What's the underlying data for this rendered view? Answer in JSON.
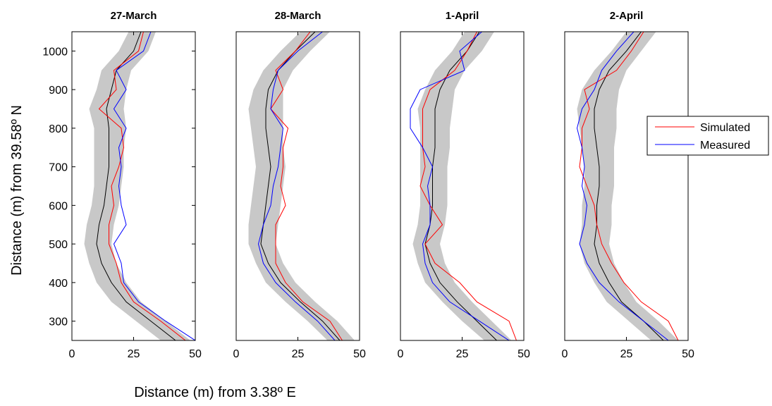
{
  "chart_data": {
    "type": "line",
    "xlabel": "Distance (m) from 3.38º E",
    "ylabel": "Distance (m) from 39.58º N",
    "xlim": [
      0,
      50
    ],
    "ylim": [
      250,
      1050
    ],
    "xticks": [
      "0",
      "25",
      "50"
    ],
    "yticks": [
      "300",
      "400",
      "500",
      "600",
      "700",
      "800",
      "900",
      "1000"
    ],
    "legend": {
      "placement": "right",
      "entries": [
        {
          "name": "Simulated",
          "color": "#ff0000"
        },
        {
          "name": "Measured",
          "color": "#0000ff"
        }
      ]
    },
    "colors": {
      "mean": "#000000",
      "band": "#c8c8c8",
      "simulated": "#ff0000",
      "measured": "#0000ff"
    },
    "panels": [
      {
        "title": "27-March",
        "series": [
          {
            "role": "mean",
            "y": [
              250,
              300,
              350,
              400,
              450,
              500,
              550,
              600,
              650,
              700,
              750,
              800,
              850,
              900,
              950,
              1000,
              1050
            ],
            "x": [
              42,
              32,
              22,
              16,
              12,
              10,
              11,
              13,
              14,
              15,
              15,
              15,
              14,
              16,
              18,
              25,
              28
            ]
          },
          {
            "role": "band-low",
            "y": [
              250,
              300,
              350,
              400,
              450,
              500,
              550,
              600,
              650,
              700,
              750,
              800,
              850,
              900,
              950,
              1000,
              1050
            ],
            "x": [
              36,
              26,
              16,
              10,
              7,
              5,
              6,
              8,
              9,
              9,
              9,
              9,
              7,
              10,
              12,
              19,
              23
            ]
          },
          {
            "role": "band-high",
            "y": [
              250,
              300,
              350,
              400,
              450,
              500,
              550,
              600,
              650,
              700,
              750,
              800,
              850,
              900,
              950,
              1000,
              1050
            ],
            "x": [
              48,
              38,
              28,
              22,
              18,
              16,
              17,
              19,
              20,
              21,
              21,
              22,
              21,
              22,
              24,
              31,
              34
            ]
          },
          {
            "role": "simulated",
            "name": "Simulated",
            "y": [
              250,
              300,
              350,
              400,
              450,
              500,
              550,
              600,
              650,
              700,
              750,
              800,
              850,
              900,
              950,
              1000,
              1050
            ],
            "x": [
              46,
              36,
              25,
              20,
              18,
              15,
              15,
              17,
              16,
              19,
              21,
              20,
              11,
              18,
              17,
              27,
              29
            ]
          },
          {
            "role": "measured",
            "name": "Measured",
            "y": [
              250,
              300,
              350,
              400,
              450,
              500,
              550,
              600,
              650,
              700,
              750,
              800,
              850,
              900,
              950,
              1000,
              1050
            ],
            "x": [
              50,
              38,
              27,
              21,
              20,
              17,
              22,
              20,
              19,
              20,
              19,
              22,
              17,
              22,
              18,
              29,
              32
            ]
          }
        ]
      },
      {
        "title": "28-March",
        "series": [
          {
            "role": "mean",
            "y": [
              250,
              300,
              350,
              400,
              450,
              500,
              550,
              600,
              650,
              700,
              750,
              800,
              850,
              900,
              950,
              1000,
              1050
            ],
            "x": [
              42,
              35,
              26,
              18,
              13,
              10,
              11,
              12,
              13,
              14,
              13,
              12,
              12,
              13,
              17,
              24,
              32
            ]
          },
          {
            "role": "band-low",
            "y": [
              250,
              300,
              350,
              400,
              450,
              500,
              550,
              600,
              650,
              700,
              750,
              800,
              850,
              900,
              950,
              1000,
              1050
            ],
            "x": [
              37,
              29,
              20,
              12,
              8,
              5,
              5,
              6,
              7,
              8,
              7,
              6,
              5,
              7,
              11,
              18,
              26
            ]
          },
          {
            "role": "band-high",
            "y": [
              250,
              300,
              350,
              400,
              450,
              500,
              550,
              600,
              650,
              700,
              750,
              800,
              850,
              900,
              950,
              1000,
              1050
            ],
            "x": [
              48,
              41,
              32,
              24,
              19,
              16,
              17,
              18,
              19,
              20,
              19,
              19,
              19,
              19,
              23,
              30,
              38
            ]
          },
          {
            "role": "simulated",
            "name": "Simulated",
            "y": [
              250,
              300,
              350,
              400,
              450,
              500,
              550,
              600,
              650,
              700,
              750,
              800,
              850,
              900,
              950,
              1000,
              1050
            ],
            "x": [
              43,
              38,
              27,
              20,
              16,
              16,
              16,
              20,
              18,
              19,
              19,
              21,
              14,
              19,
              16,
              24,
              30
            ]
          },
          {
            "role": "measured",
            "name": "Measured",
            "y": [
              250,
              300,
              350,
              400,
              450,
              500,
              550,
              600,
              650,
              700,
              750,
              800,
              850,
              900,
              950,
              1000,
              1050
            ],
            "x": [
              40,
              33,
              24,
              16,
              11,
              9,
              11,
              14,
              15,
              17,
              18,
              19,
              14,
              15,
              17,
              25,
              35
            ]
          }
        ]
      },
      {
        "title": "1-April",
        "series": [
          {
            "role": "mean",
            "y": [
              250,
              300,
              350,
              400,
              450,
              500,
              550,
              600,
              650,
              700,
              750,
              800,
              850,
              900,
              950,
              1000,
              1050
            ],
            "x": [
              39,
              31,
              23,
              16,
              12,
              10,
              12,
              13,
              13,
              13,
              14,
              14,
              14,
              16,
              20,
              27,
              32
            ]
          },
          {
            "role": "band-low",
            "y": [
              250,
              300,
              350,
              400,
              450,
              500,
              550,
              600,
              650,
              700,
              750,
              800,
              850,
              900,
              950,
              1000,
              1050
            ],
            "x": [
              34,
              25,
              17,
              10,
              7,
              5,
              7,
              8,
              8,
              8,
              8,
              8,
              7,
              10,
              14,
              21,
              26
            ]
          },
          {
            "role": "band-high",
            "y": [
              250,
              300,
              350,
              400,
              450,
              500,
              550,
              600,
              650,
              700,
              750,
              800,
              850,
              900,
              950,
              1000,
              1050
            ],
            "x": [
              45,
              37,
              29,
              22,
              18,
              16,
              18,
              19,
              19,
              19,
              20,
              20,
              21,
              22,
              26,
              33,
              38
            ]
          },
          {
            "role": "simulated",
            "name": "Simulated",
            "y": [
              250,
              300,
              350,
              400,
              450,
              500,
              550,
              600,
              650,
              700,
              750,
              800,
              850,
              900,
              950,
              1000,
              1050
            ],
            "x": [
              47,
              44,
              31,
              24,
              14,
              10,
              17,
              12,
              8,
              10,
              9,
              9,
              9,
              12,
              22,
              27,
              31
            ]
          },
          {
            "role": "measured",
            "name": "Measured",
            "y": [
              250,
              300,
              350,
              400,
              450,
              500,
              550,
              600,
              650,
              700,
              750,
              800,
              850,
              900,
              950,
              1000,
              1050
            ],
            "x": [
              44,
              32,
              20,
              13,
              10,
              9,
              12,
              12,
              11,
              13,
              9,
              4,
              4,
              8,
              26,
              24,
              33
            ]
          }
        ]
      },
      {
        "title": "2-April",
        "series": [
          {
            "role": "mean",
            "y": [
              250,
              300,
              350,
              400,
              450,
              500,
              550,
              600,
              650,
              700,
              750,
              800,
              850,
              900,
              950,
              1000,
              1050
            ],
            "x": [
              40,
              32,
              23,
              18,
              14,
              12,
              13,
              13,
              14,
              14,
              13,
              12,
              12,
              14,
              18,
              25,
              31
            ]
          },
          {
            "role": "band-low",
            "y": [
              250,
              300,
              350,
              400,
              450,
              500,
              550,
              600,
              650,
              700,
              750,
              800,
              850,
              900,
              950,
              1000,
              1050
            ],
            "x": [
              35,
              26,
              17,
              12,
              8,
              6,
              7,
              7,
              8,
              8,
              7,
              6,
              5,
              7,
              12,
              19,
              25
            ]
          },
          {
            "role": "band-high",
            "y": [
              250,
              300,
              350,
              400,
              450,
              500,
              550,
              600,
              650,
              700,
              750,
              800,
              850,
              900,
              950,
              1000,
              1050
            ],
            "x": [
              46,
              38,
              29,
              24,
              20,
              18,
              19,
              19,
              20,
              20,
              20,
              21,
              21,
              22,
              25,
              31,
              37
            ]
          },
          {
            "role": "simulated",
            "name": "Simulated",
            "y": [
              250,
              300,
              350,
              400,
              450,
              500,
              550,
              600,
              650,
              700,
              750,
              800,
              850,
              900,
              950,
              1000,
              1050
            ],
            "x": [
              46,
              42,
              31,
              24,
              19,
              15,
              13,
              12,
              9,
              6,
              7,
              7,
              10,
              8,
              21,
              27,
              32
            ]
          },
          {
            "role": "measured",
            "name": "Measured",
            "y": [
              250,
              300,
              350,
              400,
              450,
              500,
              550,
              600,
              650,
              700,
              750,
              800,
              850,
              900,
              950,
              1000,
              1050
            ],
            "x": [
              42,
              32,
              22,
              14,
              9,
              6,
              8,
              9,
              7,
              8,
              7,
              5,
              7,
              12,
              15,
              21,
              28
            ]
          }
        ]
      }
    ]
  }
}
